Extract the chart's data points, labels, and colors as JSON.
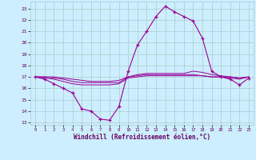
{
  "xlabel": "Windchill (Refroidissement éolien,°C)",
  "bg_color": "#cceeff",
  "grid_color": "#aacccc",
  "line_color": "#990099",
  "x_values": [
    0,
    1,
    2,
    3,
    4,
    5,
    6,
    7,
    8,
    9,
    10,
    11,
    12,
    13,
    14,
    15,
    16,
    17,
    18,
    19,
    20,
    21,
    22,
    23
  ],
  "main_curve": [
    17.0,
    16.8,
    16.4,
    16.0,
    15.6,
    14.2,
    14.0,
    13.3,
    13.2,
    14.4,
    17.5,
    19.8,
    21.0,
    22.3,
    23.2,
    22.7,
    22.3,
    21.9,
    20.4,
    17.5,
    17.0,
    16.8,
    16.3,
    16.9
  ],
  "line2": [
    17.0,
    16.9,
    16.8,
    16.6,
    16.4,
    16.3,
    16.3,
    16.3,
    16.3,
    16.4,
    16.9,
    17.0,
    17.1,
    17.1,
    17.1,
    17.1,
    17.1,
    17.1,
    17.1,
    17.0,
    17.0,
    16.9,
    16.8,
    17.0
  ],
  "line3": [
    17.0,
    17.0,
    16.9,
    16.8,
    16.6,
    16.5,
    16.5,
    16.5,
    16.5,
    16.5,
    17.0,
    17.1,
    17.2,
    17.2,
    17.2,
    17.2,
    17.2,
    17.2,
    17.1,
    17.0,
    17.0,
    17.0,
    16.9,
    17.0
  ],
  "line4": [
    17.0,
    17.0,
    17.0,
    16.9,
    16.8,
    16.7,
    16.6,
    16.6,
    16.6,
    16.7,
    17.0,
    17.2,
    17.3,
    17.3,
    17.3,
    17.3,
    17.3,
    17.5,
    17.4,
    17.2,
    17.1,
    17.0,
    16.9,
    17.0
  ],
  "ylim": [
    12.8,
    23.6
  ],
  "xlim": [
    -0.5,
    23.5
  ],
  "yticks": [
    13,
    14,
    15,
    16,
    17,
    18,
    19,
    20,
    21,
    22,
    23
  ],
  "xticks": [
    0,
    1,
    2,
    3,
    4,
    5,
    6,
    7,
    8,
    9,
    10,
    11,
    12,
    13,
    14,
    15,
    16,
    17,
    18,
    19,
    20,
    21,
    22,
    23
  ]
}
